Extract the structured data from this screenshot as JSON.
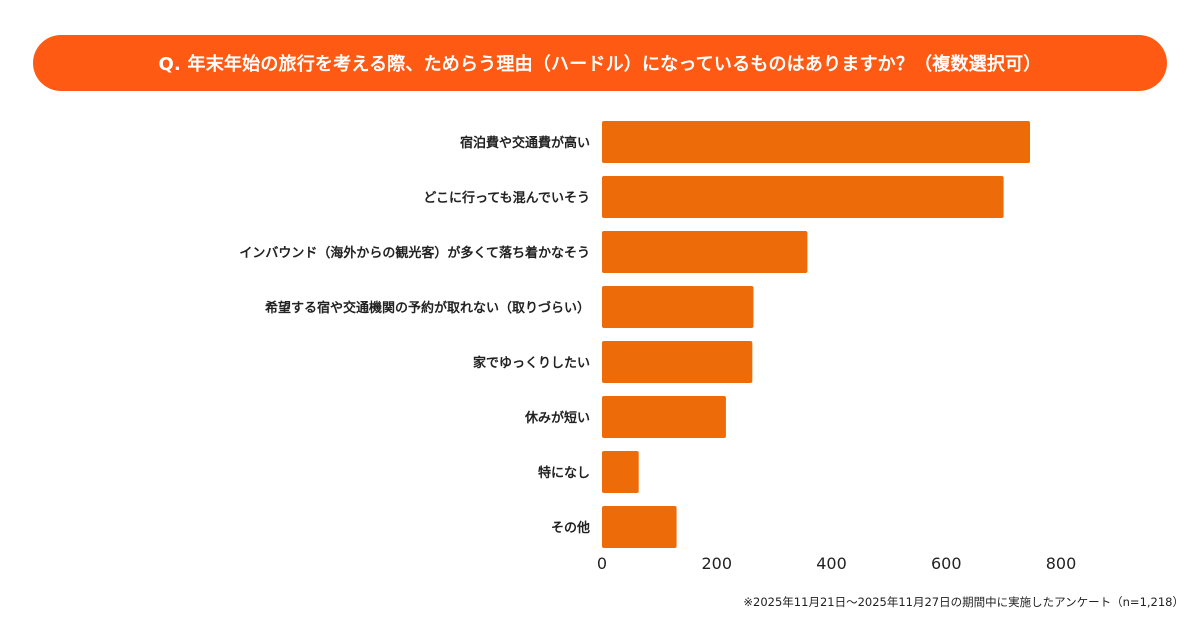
{
  "header": {
    "title": "Q. 年末年始の旅行を考える際、ためらう理由（ハードル）になっているものはありますか？（複数選択可）"
  },
  "footnote": "※2025年11月21日〜2025年11月27日の期間中に実施したアンケート（n=1,218）",
  "colors": {
    "header": "#FF5A14",
    "bar": "#EE6B0A"
  },
  "chart_data": {
    "type": "bar",
    "orientation": "horizontal",
    "title": "Q. 年末年始の旅行を考える際、ためらう理由（ハードル）になっているものはありますか？（複数選択可）",
    "categories": [
      "宿泊費や交通費が高い",
      "どこに行っても混んでいそう",
      "インバウンド（海外からの観光客）が多くて落ち着かなそう",
      "希望する宿や交通機関の予約が取れない（取りづらい）",
      "家でゆっくりしたい",
      "休みが短い",
      "特になし",
      "その他"
    ],
    "values": [
      746,
      700,
      358,
      264,
      262,
      216,
      64,
      130
    ],
    "xlim": [
      0,
      800
    ],
    "xticks": [
      "0",
      "200",
      "400",
      "600",
      "800"
    ],
    "xlabel": "",
    "ylabel": "",
    "grid": false
  }
}
